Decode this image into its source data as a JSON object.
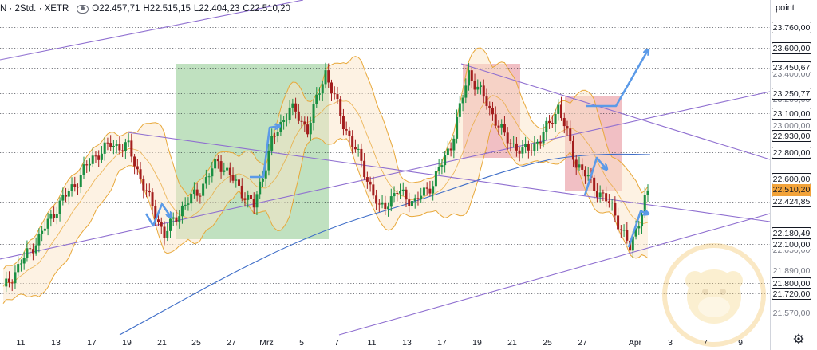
{
  "header": {
    "symbol_text": "N · 2Std. · XETR",
    "open": "O22.457,71",
    "high": "H22.515,15",
    "low": "L22.404,23",
    "close": "C22.510,20"
  },
  "price_axis": {
    "unit_label": "point",
    "boxed_labels": [
      "23.760,00",
      "23.600,00",
      "23.450,67",
      "23.250,77",
      "23.100,00",
      "22.930,00",
      "22.800,00",
      "22.600,00",
      "22.424,85",
      "22.180,49",
      "22.100,00",
      "21.800,00",
      "21.720,00"
    ],
    "current_price": "22.510,20",
    "plain_labels": [
      "23.400,00",
      "23.200,00",
      "23.000,00",
      "22.050,00",
      "21.890,00",
      "21.570,00"
    ]
  },
  "time_axis": {
    "labels": [
      "11",
      "13",
      "17",
      "19",
      "21",
      "25",
      "27",
      "Mrz",
      "5",
      "7",
      "11",
      "13",
      "17",
      "19",
      "21",
      "25",
      "27",
      "Apr",
      "3",
      "7",
      "9"
    ]
  },
  "colors": {
    "candle_up": "#1a8f42",
    "candle_down": "#a31d1d",
    "bollinger": "#e8a83a",
    "bollinger_fill": "#fbe6c8",
    "ma_line": "#3f6ec8",
    "trendline": "#8f6fd0",
    "arrow": "#5b9ae8",
    "green_zone": "#8cc98c",
    "red_zone": "#e58a94",
    "current_price": "#f2a33a"
  },
  "chart_data": {
    "type": "candlestick",
    "symbol": "N · 2Std. · XETR",
    "x_labels": [
      "11",
      "13",
      "17",
      "19",
      "21",
      "25",
      "27",
      "Mrz",
      "5",
      "7",
      "11",
      "13",
      "17",
      "19",
      "21",
      "25",
      "27",
      "Apr",
      "3",
      "7",
      "9"
    ],
    "close_path": [
      {
        "x": "10",
        "price": 21750
      },
      {
        "x": "11",
        "price": 21960
      },
      {
        "x": "12",
        "price": 22150
      },
      {
        "x": "13",
        "price": 22380
      },
      {
        "x": "14",
        "price": 22560
      },
      {
        "x": "17",
        "price": 22760
      },
      {
        "x": "18",
        "price": 22860
      },
      {
        "x": "19",
        "price": 22840
      },
      {
        "x": "20",
        "price": 22490
      },
      {
        "x": "21",
        "price": 22170
      },
      {
        "x": "24",
        "price": 22380
      },
      {
        "x": "25",
        "price": 22520
      },
      {
        "x": "26",
        "price": 22740
      },
      {
        "x": "27",
        "price": 22560
      },
      {
        "x": "28",
        "price": 22390
      },
      {
        "x": "Mrz",
        "price": 22880
      },
      {
        "x": "4",
        "price": 23150
      },
      {
        "x": "5",
        "price": 22980
      },
      {
        "x": "6",
        "price": 23420
      },
      {
        "x": "7",
        "price": 23020
      },
      {
        "x": "10",
        "price": 22720
      },
      {
        "x": "11",
        "price": 22360
      },
      {
        "x": "12",
        "price": 22500
      },
      {
        "x": "13",
        "price": 22420
      },
      {
        "x": "14",
        "price": 22570
      },
      {
        "x": "17",
        "price": 22860
      },
      {
        "x": "18",
        "price": 23410
      },
      {
        "x": "19",
        "price": 23180
      },
      {
        "x": "20",
        "price": 22920
      },
      {
        "x": "21",
        "price": 22800
      },
      {
        "x": "24",
        "price": 22900
      },
      {
        "x": "25",
        "price": 23150
      },
      {
        "x": "26",
        "price": 22720
      },
      {
        "x": "27",
        "price": 22540
      },
      {
        "x": "28",
        "price": 22380
      },
      {
        "x": "31",
        "price": 22060
      },
      {
        "x": "Apr",
        "price": 22510
      }
    ],
    "last_bar": {
      "open": 22457.71,
      "high": 22515.15,
      "low": 22404.23,
      "close": 22510.2
    },
    "horizontal_levels": [
      23760.0,
      23600.0,
      23450.67,
      23250.77,
      23100.0,
      22930.0,
      22800.0,
      22600.0,
      22424.85,
      22180.49,
      22100.0,
      21800.0,
      21720.0
    ],
    "indicators": [
      "Bollinger Bands",
      "Moving Average"
    ],
    "zones": [
      {
        "kind": "bullish",
        "color": "#8cc98c"
      },
      {
        "kind": "bearish",
        "color": "#e58a94"
      },
      {
        "kind": "bearish",
        "color": "#e58a94"
      }
    ],
    "grid": false,
    "ylim": [
      21500,
      23850
    ]
  }
}
